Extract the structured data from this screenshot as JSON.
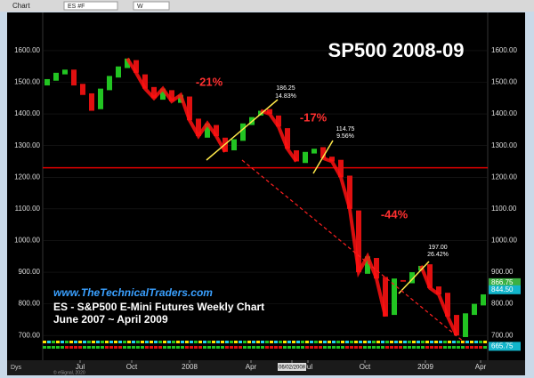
{
  "chart_data": {
    "type": "candlestick",
    "toolbar": "Chart",
    "symbol": "ES #F",
    "interval": "W",
    "title": "SP500 2008-09",
    "website": "www.TheTechnicalTraders.com",
    "subtitle": "ES - S&P500 E-Mini Futures Weekly Chart",
    "period": "June 2007 ~ April 2009",
    "footer": "Dys",
    "copyright": "© eSignal, 2020",
    "up_color": "#22c422",
    "down_color": "#e01010",
    "open": [
      1490,
      1505,
      1525,
      1540,
      1495,
      1465,
      1415,
      1475,
      1515,
      1545,
      1570,
      1525,
      1485,
      1445,
      1475,
      1435,
      1455,
      1385,
      1325,
      1365,
      1325,
      1285,
      1315,
      1365,
      1395,
      1415,
      1395,
      1355,
      1285,
      1245,
      1275,
      1295,
      1265,
      1255,
      1205,
      1095,
      895,
      945,
      885,
      765,
      875,
      865,
      905,
      925,
      855,
      835,
      765,
      695,
      765,
      795
    ],
    "close": [
      1510,
      1530,
      1540,
      1490,
      1460,
      1410,
      1480,
      1520,
      1550,
      1575,
      1530,
      1480,
      1450,
      1480,
      1440,
      1460,
      1380,
      1330,
      1370,
      1330,
      1280,
      1320,
      1370,
      1390,
      1410,
      1400,
      1360,
      1290,
      1250,
      1280,
      1290,
      1260,
      1250,
      1200,
      1100,
      900,
      950,
      880,
      760,
      880,
      870,
      900,
      920,
      850,
      830,
      760,
      700,
      770,
      800,
      830
    ],
    "xlim": [
      0,
      50
    ],
    "xticks": [
      {
        "value": 4.2,
        "label": "Jul"
      },
      {
        "value": 10,
        "label": "Oct"
      },
      {
        "value": 16.5,
        "label": "2008"
      },
      {
        "value": 23.4,
        "label": "Apr"
      },
      {
        "value": 28,
        "label": "06/02/2008"
      },
      {
        "value": 29.8,
        "label": "Jul"
      },
      {
        "value": 36.2,
        "label": "Oct"
      },
      {
        "value": 43,
        "label": "2009"
      },
      {
        "value": 49.2,
        "label": "Apr"
      }
    ],
    "ylim": [
      650,
      1715
    ],
    "yticks": [
      {
        "value": 700,
        "label": "700.00"
      },
      {
        "value": 800,
        "label": "800.00"
      },
      {
        "value": 900,
        "label": "900.00"
      },
      {
        "value": 1000,
        "label": "1000.00"
      },
      {
        "value": 1100,
        "label": "1100.00"
      },
      {
        "value": 1200,
        "label": "1200.00"
      },
      {
        "value": 1300,
        "label": "1300.00"
      },
      {
        "value": 1400,
        "label": "1400.00"
      },
      {
        "value": 1500,
        "label": "1500.00"
      },
      {
        "value": 1600,
        "label": "1600.00"
      }
    ],
    "price_tags": [
      {
        "value": 866.75,
        "label": "866.75",
        "color": "#3cb043"
      },
      {
        "value": 844.5,
        "label": "844.50",
        "color": "#12b5cb"
      },
      {
        "value": 665.75,
        "label": "665.75",
        "color": "#12b5cb"
      }
    ],
    "annotations": [
      {
        "text": "-21%",
        "color": "#ff3030"
      },
      {
        "text": "-17%",
        "color": "#ff3030"
      },
      {
        "text": "-44%",
        "color": "#ff3030"
      },
      {
        "text": "186.25",
        "color": "#ffffff"
      },
      {
        "text": "14.83%",
        "color": "#ffffff"
      },
      {
        "text": "114.75",
        "color": "#ffffff"
      },
      {
        "text": "9.56%",
        "color": "#ffffff"
      },
      {
        "text": "197.00",
        "color": "#ffffff"
      },
      {
        "text": "26.42%",
        "color": "#ffffff"
      }
    ]
  }
}
